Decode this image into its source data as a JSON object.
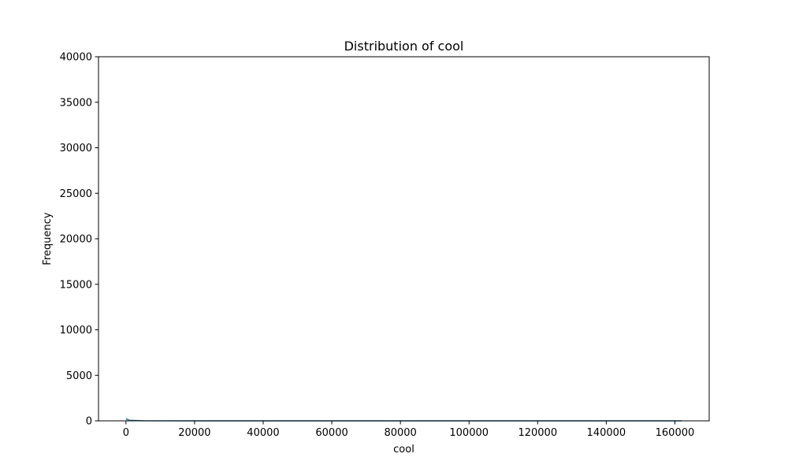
{
  "chart_data": {
    "type": "area",
    "title": "Distribution of cool",
    "xlabel": "cool",
    "ylabel": "Frequency",
    "xlim": [
      -8000,
      170000
    ],
    "ylim": [
      0,
      40000
    ],
    "xticks": [
      0,
      20000,
      40000,
      60000,
      80000,
      100000,
      120000,
      140000,
      160000
    ],
    "yticks": [
      0,
      5000,
      10000,
      15000,
      20000,
      25000,
      30000,
      35000,
      40000
    ],
    "grid": false,
    "series": [
      {
        "color": "#1f77b4",
        "x": [
          0,
          1000,
          5000,
          20000,
          40000,
          60000,
          80000,
          100000,
          120000,
          140000,
          162000
        ],
        "y": [
          250,
          60,
          10,
          2,
          1,
          1,
          1,
          1,
          1,
          1,
          1
        ]
      }
    ]
  }
}
